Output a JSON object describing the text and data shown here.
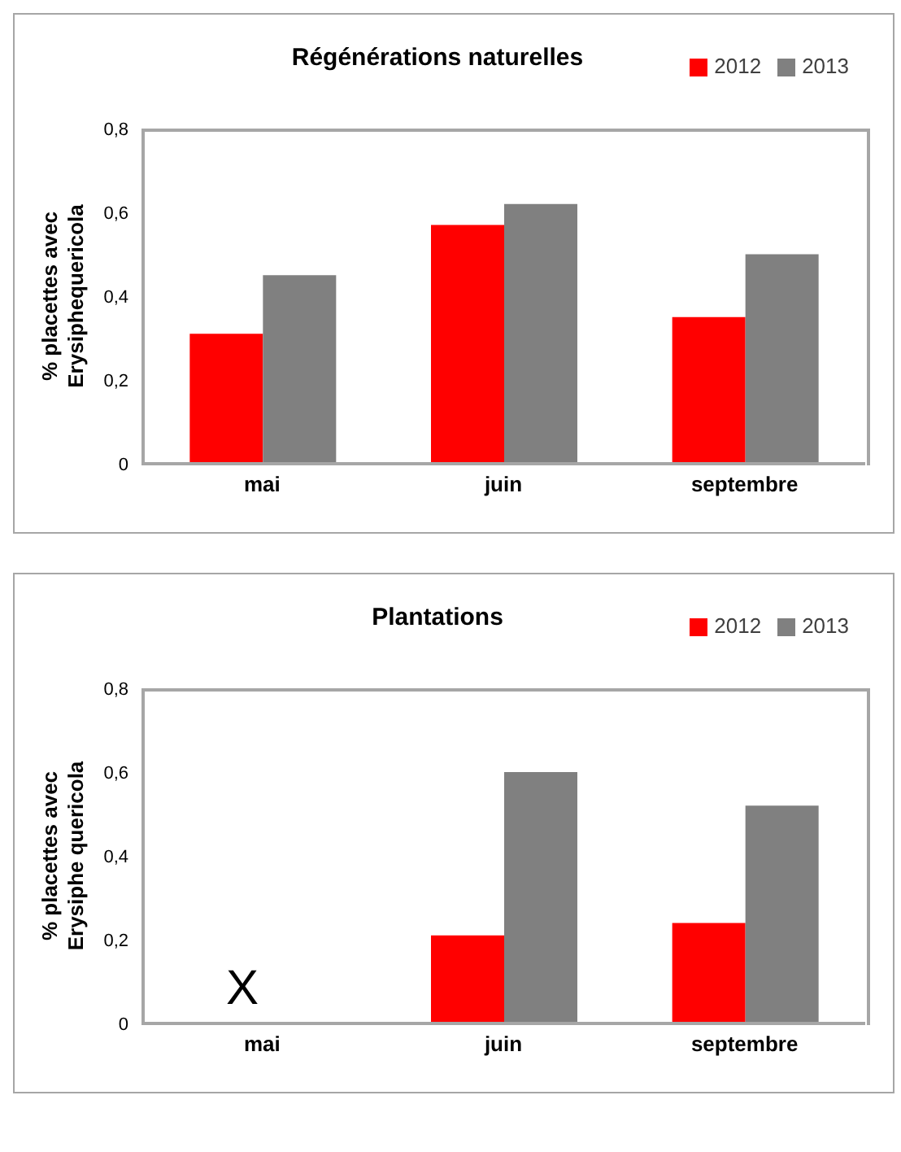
{
  "chart_data": [
    {
      "type": "bar",
      "title": "Régénérations naturelles",
      "ylabel": "% placettes avec Erysiphequericola",
      "categories": [
        "mai",
        "juin",
        "septembre"
      ],
      "series": [
        {
          "name": "2012",
          "color": "#ff0000",
          "values": [
            0.31,
            0.57,
            0.35
          ]
        },
        {
          "name": "2013",
          "color": "#808080",
          "values": [
            0.45,
            0.62,
            0.5
          ]
        }
      ],
      "ylim": [
        0,
        0.8
      ],
      "yticks": [
        0,
        {
          "value": 0.2,
          "label": "0,2"
        },
        {
          "value": 0.4,
          "label": "0,4"
        },
        {
          "value": 0.6,
          "label": "0,6"
        },
        {
          "value": 0.8,
          "label": "0,8"
        }
      ],
      "grid": false,
      "legend": "top right"
    },
    {
      "type": "bar",
      "title": "Plantations",
      "ylabel": "% placettes avec Erysiphe quericola",
      "categories": [
        "mai",
        "juin",
        "septembre"
      ],
      "series": [
        {
          "name": "2012",
          "color": "#ff0000",
          "values": [
            null,
            0.21,
            0.24
          ]
        },
        {
          "name": "2013",
          "color": "#808080",
          "values": [
            null,
            0.6,
            0.52
          ]
        }
      ],
      "ylim": [
        0,
        0.8
      ],
      "yticks": [
        0,
        {
          "value": 0.2,
          "label": "0,2"
        },
        {
          "value": 0.4,
          "label": "0,4"
        },
        {
          "value": 0.6,
          "label": "0,6"
        },
        {
          "value": 0.8,
          "label": "0,8"
        }
      ],
      "grid": false,
      "legend": "top right",
      "annotations": [
        "X"
      ]
    }
  ]
}
